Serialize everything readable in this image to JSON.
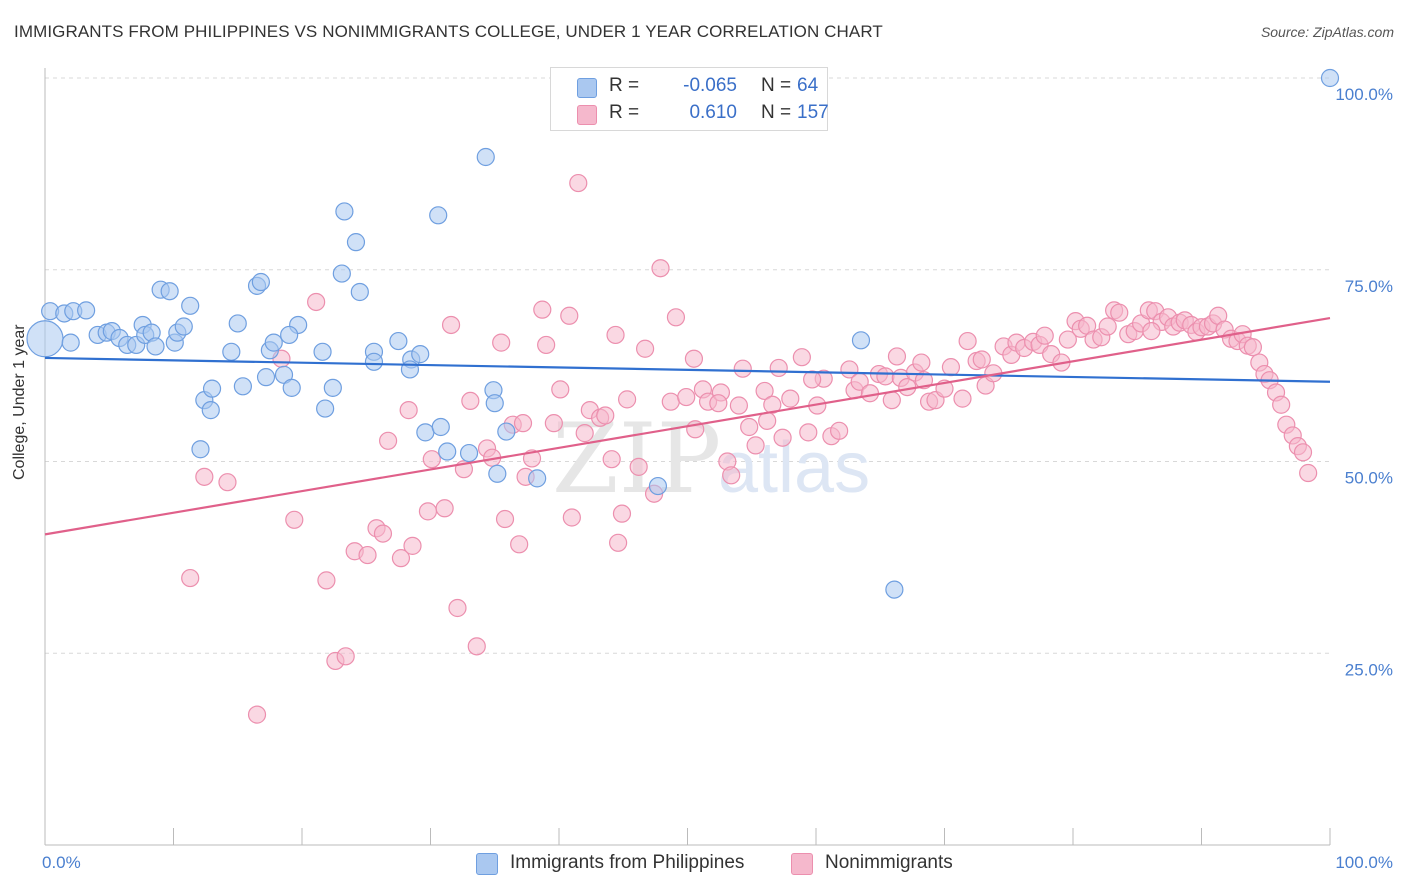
{
  "title": "IMMIGRANTS FROM PHILIPPINES VS NONIMMIGRANTS COLLEGE, UNDER 1 YEAR CORRELATION CHART",
  "source": "Source: ZipAtlas.com",
  "watermark": {
    "zip": "ZIP",
    "atlas": "atlas"
  },
  "colors": {
    "blue_fill": "#aac8f0",
    "blue_stroke": "#6f9fe0",
    "blue_line": "#3070d0",
    "pink_fill": "#f5b8cc",
    "pink_stroke": "#ec8fae",
    "pink_line": "#e0608a",
    "grid": "#d8d8d8",
    "tick_text": "#4a7fcf"
  },
  "legend": {
    "rows": [
      {
        "r_label": "R =",
        "r_value": "-0.065",
        "n_label": "N =",
        "n_value": "64"
      },
      {
        "r_label": "R =",
        "r_value": "0.610",
        "n_label": "N =",
        "n_value": "157"
      }
    ]
  },
  "chart_data": {
    "type": "scatter",
    "xlabel": "",
    "ylabel": "College, Under 1 year",
    "xlim": [
      0,
      100
    ],
    "ylim": [
      0,
      100
    ],
    "x_tick_labels": [
      "0.0%",
      "100.0%"
    ],
    "y_ticks": [
      {
        "value": 25,
        "label": "25.0%"
      },
      {
        "value": 50,
        "label": "50.0%"
      },
      {
        "value": 75,
        "label": "75.0%"
      },
      {
        "value": 100,
        "label": "100.0%"
      }
    ],
    "grid": "horizontal dashed",
    "legend_position": "bottom",
    "series": [
      {
        "name": "Immigrants from Philippines",
        "color": "#aac8f0",
        "trend": {
          "x": [
            0,
            100
          ],
          "y": [
            63.5,
            60.4
          ]
        },
        "points": [
          [
            0.0,
            66.0
          ],
          [
            0.4,
            69.6
          ],
          [
            1.5,
            69.3
          ],
          [
            2.2,
            69.6
          ],
          [
            3.2,
            69.7
          ],
          [
            2.0,
            65.5
          ],
          [
            4.1,
            66.5
          ],
          [
            4.8,
            66.8
          ],
          [
            5.2,
            67.0
          ],
          [
            5.8,
            66.1
          ],
          [
            6.4,
            65.2
          ],
          [
            7.1,
            65.2
          ],
          [
            7.6,
            67.8
          ],
          [
            7.8,
            66.5
          ],
          [
            8.3,
            66.8
          ],
          [
            8.6,
            65.0
          ],
          [
            9.0,
            72.4
          ],
          [
            9.7,
            72.2
          ],
          [
            10.1,
            65.5
          ],
          [
            10.3,
            66.8
          ],
          [
            10.8,
            67.6
          ],
          [
            11.3,
            70.3
          ],
          [
            12.4,
            58.0
          ],
          [
            12.1,
            51.6
          ],
          [
            12.9,
            56.7
          ],
          [
            13.0,
            59.5
          ],
          [
            14.5,
            64.3
          ],
          [
            15.0,
            68.0
          ],
          [
            15.4,
            59.8
          ],
          [
            16.5,
            72.9
          ],
          [
            17.5,
            64.5
          ],
          [
            17.8,
            65.5
          ],
          [
            17.2,
            61.0
          ],
          [
            16.8,
            73.4
          ],
          [
            18.6,
            61.3
          ],
          [
            19.7,
            67.8
          ],
          [
            19.0,
            66.5
          ],
          [
            19.2,
            59.6
          ],
          [
            21.8,
            56.9
          ],
          [
            22.4,
            59.6
          ],
          [
            21.6,
            64.3
          ],
          [
            23.1,
            74.5
          ],
          [
            23.3,
            82.6
          ],
          [
            24.2,
            78.6
          ],
          [
            24.5,
            72.1
          ],
          [
            25.6,
            64.3
          ],
          [
            25.6,
            63.0
          ],
          [
            27.5,
            65.7
          ],
          [
            28.5,
            63.3
          ],
          [
            29.2,
            64.0
          ],
          [
            28.4,
            62.0
          ],
          [
            29.6,
            53.8
          ],
          [
            30.6,
            82.1
          ],
          [
            30.8,
            54.5
          ],
          [
            31.3,
            51.3
          ],
          [
            33.0,
            51.1
          ],
          [
            34.3,
            89.7
          ],
          [
            34.9,
            59.3
          ],
          [
            35.0,
            57.6
          ],
          [
            35.2,
            48.4
          ],
          [
            35.9,
            53.9
          ],
          [
            38.3,
            47.8
          ],
          [
            47.7,
            46.8
          ],
          [
            63.5,
            65.8
          ],
          [
            66.1,
            33.3
          ],
          [
            100.0,
            100.0
          ]
        ]
      },
      {
        "name": "Nonimmigrants",
        "color": "#f5b8cc",
        "trend": {
          "x": [
            0,
            100
          ],
          "y": [
            40.5,
            68.7
          ]
        },
        "points": [
          [
            11.3,
            34.8
          ],
          [
            12.4,
            48.0
          ],
          [
            16.5,
            17.0
          ],
          [
            19.4,
            42.4
          ],
          [
            21.1,
            70.8
          ],
          [
            21.9,
            34.5
          ],
          [
            22.6,
            24.0
          ],
          [
            23.4,
            24.6
          ],
          [
            24.1,
            38.3
          ],
          [
            25.1,
            37.8
          ],
          [
            25.8,
            41.3
          ],
          [
            26.3,
            40.6
          ],
          [
            26.7,
            52.7
          ],
          [
            27.7,
            37.4
          ],
          [
            28.3,
            56.7
          ],
          [
            28.6,
            39.0
          ],
          [
            30.1,
            50.3
          ],
          [
            31.1,
            43.9
          ],
          [
            31.6,
            67.8
          ],
          [
            32.1,
            30.9
          ],
          [
            32.6,
            49.0
          ],
          [
            33.1,
            57.9
          ],
          [
            33.6,
            25.9
          ],
          [
            34.4,
            51.7
          ],
          [
            34.8,
            50.5
          ],
          [
            35.5,
            65.5
          ],
          [
            35.8,
            42.5
          ],
          [
            36.4,
            54.8
          ],
          [
            36.9,
            39.2
          ],
          [
            37.2,
            55.0
          ],
          [
            37.9,
            50.4
          ],
          [
            38.7,
            69.8
          ],
          [
            39.0,
            65.2
          ],
          [
            39.6,
            55.0
          ],
          [
            40.1,
            59.4
          ],
          [
            40.8,
            69.0
          ],
          [
            41.0,
            42.7
          ],
          [
            41.5,
            86.3
          ],
          [
            42.0,
            53.7
          ],
          [
            42.4,
            56.7
          ],
          [
            43.2,
            55.7
          ],
          [
            43.6,
            56.0
          ],
          [
            44.1,
            50.3
          ],
          [
            44.4,
            66.5
          ],
          [
            44.6,
            39.4
          ],
          [
            45.3,
            58.1
          ],
          [
            46.2,
            49.3
          ],
          [
            46.7,
            64.7
          ],
          [
            47.4,
            45.8
          ],
          [
            47.9,
            75.2
          ],
          [
            48.7,
            57.8
          ],
          [
            49.1,
            68.8
          ],
          [
            49.9,
            58.4
          ],
          [
            50.5,
            63.4
          ],
          [
            50.6,
            54.2
          ],
          [
            51.2,
            59.4
          ],
          [
            51.6,
            57.8
          ],
          [
            52.6,
            59.0
          ],
          [
            52.4,
            57.6
          ],
          [
            53.1,
            50.0
          ],
          [
            53.4,
            48.2
          ],
          [
            54.0,
            57.3
          ],
          [
            54.8,
            54.5
          ],
          [
            55.3,
            52.1
          ],
          [
            56.0,
            59.2
          ],
          [
            56.6,
            57.4
          ],
          [
            57.1,
            62.2
          ],
          [
            57.4,
            53.1
          ],
          [
            58.0,
            58.2
          ],
          [
            58.9,
            63.6
          ],
          [
            59.4,
            53.8
          ],
          [
            60.1,
            57.3
          ],
          [
            60.6,
            60.8
          ],
          [
            61.2,
            53.3
          ],
          [
            61.8,
            54.0
          ],
          [
            62.6,
            62.0
          ],
          [
            63.0,
            59.3
          ],
          [
            63.4,
            60.4
          ],
          [
            64.2,
            58.9
          ],
          [
            64.9,
            61.4
          ],
          [
            65.4,
            61.1
          ],
          [
            65.9,
            58.0
          ],
          [
            66.6,
            60.9
          ],
          [
            67.1,
            59.7
          ],
          [
            67.7,
            61.6
          ],
          [
            68.4,
            60.6
          ],
          [
            68.8,
            57.8
          ],
          [
            69.3,
            58.0
          ],
          [
            70.0,
            59.5
          ],
          [
            70.5,
            62.3
          ],
          [
            71.4,
            58.2
          ],
          [
            71.8,
            65.7
          ],
          [
            72.5,
            63.1
          ],
          [
            73.2,
            59.9
          ],
          [
            73.8,
            61.5
          ],
          [
            74.6,
            65.0
          ],
          [
            75.2,
            63.9
          ],
          [
            75.6,
            65.5
          ],
          [
            76.2,
            64.8
          ],
          [
            76.9,
            65.6
          ],
          [
            77.4,
            65.2
          ],
          [
            77.8,
            66.4
          ],
          [
            78.3,
            64.0
          ],
          [
            79.1,
            62.9
          ],
          [
            79.6,
            65.9
          ],
          [
            80.2,
            68.3
          ],
          [
            80.6,
            67.3
          ],
          [
            81.1,
            67.7
          ],
          [
            81.6,
            65.9
          ],
          [
            82.2,
            66.2
          ],
          [
            82.7,
            67.6
          ],
          [
            83.2,
            69.7
          ],
          [
            83.6,
            69.4
          ],
          [
            84.3,
            66.6
          ],
          [
            84.8,
            67.0
          ],
          [
            85.3,
            68.0
          ],
          [
            85.9,
            69.7
          ],
          [
            86.4,
            69.6
          ],
          [
            86.9,
            68.2
          ],
          [
            87.4,
            68.8
          ],
          [
            87.8,
            67.6
          ],
          [
            88.3,
            68.1
          ],
          [
            88.7,
            68.4
          ],
          [
            89.2,
            67.8
          ],
          [
            89.6,
            66.9
          ],
          [
            90.0,
            67.5
          ],
          [
            90.5,
            67.6
          ],
          [
            90.9,
            68.0
          ],
          [
            91.3,
            69.0
          ],
          [
            91.8,
            67.2
          ],
          [
            92.3,
            66.0
          ],
          [
            92.8,
            65.7
          ],
          [
            93.2,
            66.6
          ],
          [
            93.6,
            65.1
          ],
          [
            94.0,
            64.9
          ],
          [
            94.5,
            62.9
          ],
          [
            94.9,
            61.4
          ],
          [
            95.3,
            60.6
          ],
          [
            95.8,
            59.0
          ],
          [
            96.2,
            57.4
          ],
          [
            96.6,
            54.8
          ],
          [
            97.1,
            53.4
          ],
          [
            97.5,
            52.0
          ],
          [
            97.9,
            51.2
          ],
          [
            98.3,
            48.5
          ],
          [
            14.2,
            47.3
          ],
          [
            18.4,
            63.4
          ],
          [
            29.8,
            43.5
          ],
          [
            37.4,
            48.0
          ],
          [
            44.9,
            43.2
          ],
          [
            54.3,
            62.1
          ],
          [
            56.2,
            55.3
          ],
          [
            59.7,
            60.7
          ],
          [
            66.3,
            63.7
          ],
          [
            68.2,
            62.9
          ],
          [
            72.9,
            63.3
          ],
          [
            86.1,
            67.0
          ]
        ]
      }
    ]
  },
  "bottom_legend": [
    "Immigrants from Philippines",
    "Nonimmigrants"
  ]
}
